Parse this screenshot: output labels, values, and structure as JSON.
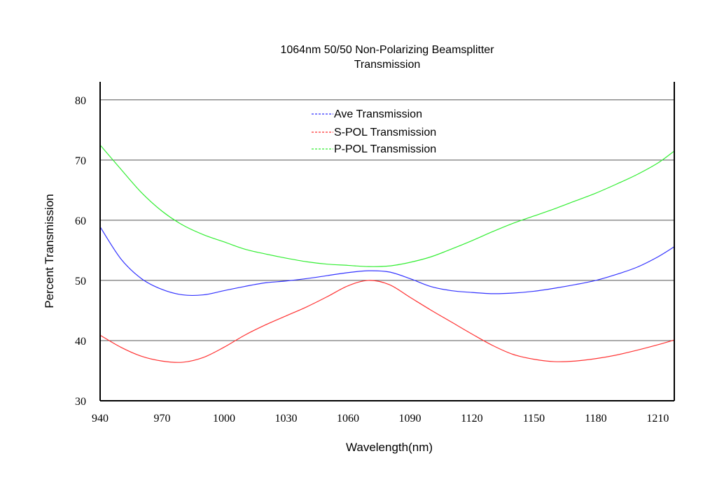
{
  "chart_data": {
    "type": "line",
    "title": "1064nm 50/50 Non-Polarizing Beamsplitter",
    "subtitle": "Transmission",
    "xlabel": "Wavelength(nm)",
    "ylabel": "Percent  Transmission",
    "xlim": [
      940,
      1218
    ],
    "ylim": [
      30,
      83
    ],
    "x_ticks": [
      940,
      970,
      1000,
      1030,
      1060,
      1090,
      1120,
      1150,
      1180,
      1210
    ],
    "y_ticks": [
      30,
      40,
      50,
      60,
      70,
      80
    ],
    "x_tick_labels": [
      "940",
      "970",
      "1000",
      "1030",
      "1060",
      "1090",
      "1120",
      "1150",
      "1180",
      "1210"
    ],
    "y_tick_labels": [
      "30",
      "40",
      "50",
      "60",
      "70",
      "80"
    ],
    "grid": "horizontal",
    "legend_position": "top-center",
    "series": [
      {
        "name": "Ave Transmission",
        "legend_label": "----Ave Transmission",
        "color": "#3333ff",
        "x": [
          940,
          950,
          960,
          970,
          980,
          990,
          1000,
          1010,
          1020,
          1030,
          1040,
          1050,
          1060,
          1070,
          1080,
          1090,
          1100,
          1110,
          1120,
          1130,
          1140,
          1150,
          1160,
          1170,
          1180,
          1190,
          1200,
          1210,
          1218
        ],
        "y": [
          58.9,
          53.6,
          50.3,
          48.5,
          47.6,
          47.6,
          48.3,
          49.0,
          49.6,
          49.9,
          50.3,
          50.8,
          51.3,
          51.6,
          51.4,
          50.3,
          49.0,
          48.3,
          48.0,
          47.8,
          47.9,
          48.2,
          48.7,
          49.3,
          50.0,
          51.0,
          52.2,
          53.9,
          55.6
        ]
      },
      {
        "name": "S-POL Transmission",
        "legend_label": "----S-POL Transmission",
        "color": "#ff3333",
        "x": [
          940,
          950,
          960,
          970,
          980,
          990,
          1000,
          1010,
          1020,
          1030,
          1040,
          1050,
          1060,
          1070,
          1080,
          1090,
          1100,
          1110,
          1120,
          1130,
          1140,
          1150,
          1160,
          1170,
          1180,
          1190,
          1200,
          1210,
          1218
        ],
        "y": [
          40.9,
          38.9,
          37.4,
          36.6,
          36.4,
          37.2,
          38.9,
          40.9,
          42.6,
          44.1,
          45.6,
          47.3,
          49.1,
          50.0,
          49.3,
          47.2,
          45.1,
          43.1,
          41.1,
          39.2,
          37.7,
          36.9,
          36.5,
          36.6,
          37.0,
          37.6,
          38.4,
          39.3,
          40.1
        ]
      },
      {
        "name": "P-POL Transmission",
        "legend_label": "----P-POL Transmission",
        "color": "#33ee33",
        "x": [
          940,
          950,
          960,
          970,
          980,
          990,
          1000,
          1010,
          1020,
          1030,
          1040,
          1050,
          1060,
          1070,
          1080,
          1090,
          1100,
          1110,
          1120,
          1130,
          1140,
          1150,
          1160,
          1170,
          1180,
          1190,
          1200,
          1210,
          1218
        ],
        "y": [
          72.5,
          68.5,
          64.6,
          61.5,
          59.2,
          57.6,
          56.4,
          55.2,
          54.4,
          53.7,
          53.1,
          52.7,
          52.5,
          52.3,
          52.4,
          53.0,
          53.9,
          55.2,
          56.6,
          58.1,
          59.5,
          60.7,
          61.9,
          63.2,
          64.5,
          66.0,
          67.6,
          69.5,
          71.5
        ]
      }
    ]
  }
}
